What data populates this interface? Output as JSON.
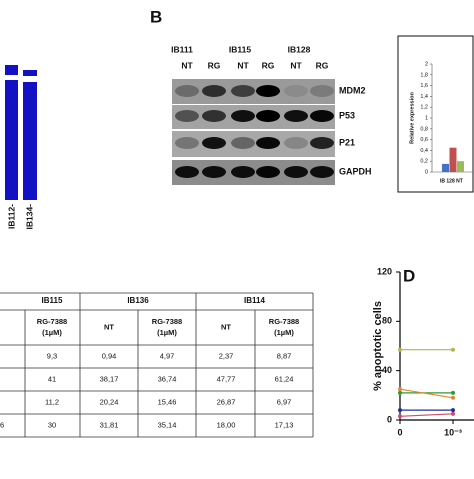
{
  "panel_a": {
    "x_labels": [
      "IB112-",
      "IB134-"
    ]
  },
  "panel_b": {
    "label": "B",
    "groups": [
      "IB111",
      "IB115",
      "IB128"
    ],
    "lanes": [
      "NT",
      "RG",
      "NT",
      "RG",
      "NT",
      "RG"
    ],
    "proteins": [
      "MDM2",
      "P53",
      "P21",
      "GAPDH"
    ],
    "inset": {
      "type": "bar",
      "y_label": "Relative expression",
      "x_label": "IB 128 NT",
      "ylim": [
        0,
        2
      ],
      "yticks": [
        0,
        {
          "value": 0.2,
          "label": "0,2"
        },
        {
          "value": 0.4,
          "label": "0,4"
        },
        {
          "value": 0.6,
          "label": "0,6"
        },
        {
          "value": 0.8,
          "label": "0,8"
        },
        1,
        {
          "value": 1.2,
          "label": "1,2"
        },
        {
          "value": 1.4,
          "label": "1,4"
        },
        {
          "value": 1.6,
          "label": "1,6"
        },
        {
          "value": 1.8,
          "label": "1,8"
        },
        2
      ],
      "values": [
        0.15,
        0.45,
        0.2
      ],
      "colors": [
        "#4472c4",
        "#c0504d",
        "#9bbb59"
      ]
    }
  },
  "panel_c": {
    "group_headers": [
      "IB115",
      "IB136",
      "IB114"
    ],
    "column_headers": [
      [
        "RG-7388",
        "(1µM)"
      ],
      [
        "NT"
      ],
      [
        "RG-7388",
        "(1µM)"
      ],
      [
        "NT"
      ],
      [
        "RG-7388",
        "(1µM)"
      ]
    ],
    "rows": [
      [
        "9,3",
        "0,94",
        "4,97",
        "2,37",
        "8,87"
      ],
      [
        "41",
        "38,17",
        "36,74",
        "47,77",
        "61,24"
      ],
      [
        "11,2",
        "20,24",
        "15,46",
        "26,87",
        "6,97"
      ],
      [
        "30",
        "31,81",
        "35,14",
        "18,00",
        "17,13"
      ]
    ],
    "cut_cell": "6"
  },
  "panel_d": {
    "type": "line",
    "label": "D",
    "y_label": "% apoptotic cells",
    "x_tick_labels": [
      "0",
      "10⁻³"
    ],
    "ylim": [
      0,
      120
    ],
    "yticks": [
      0,
      40,
      80,
      120
    ],
    "series": [
      {
        "color": "#b5b54a",
        "values": [
          57,
          57
        ]
      },
      {
        "color": "#2e9a3a",
        "values": [
          22,
          22
        ]
      },
      {
        "color": "#e8872a",
        "values": [
          25,
          18
        ]
      },
      {
        "color": "#1f2f9f",
        "values": [
          8,
          8
        ]
      },
      {
        "color": "#d04a6a",
        "values": [
          3,
          5
        ]
      }
    ]
  }
}
